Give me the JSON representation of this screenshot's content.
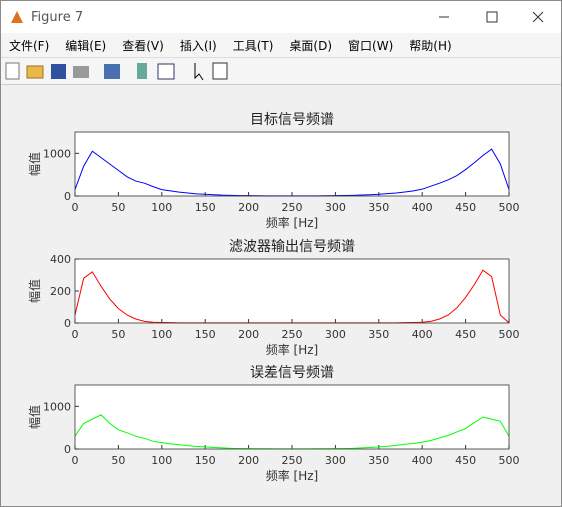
{
  "window": {
    "title": "Figure 7",
    "menu": [
      "文件(F)",
      "编辑(E)",
      "查看(V)",
      "插入(I)",
      "工具(T)",
      "桌面(D)",
      "窗口(W)",
      "帮助(H)"
    ]
  },
  "chart_data": [
    {
      "type": "line",
      "title": "目标信号频谱",
      "xlabel": "频率 [Hz]",
      "ylabel": "幅值",
      "x": [
        0,
        10,
        20,
        30,
        40,
        50,
        60,
        70,
        80,
        90,
        100,
        110,
        120,
        130,
        140,
        150,
        160,
        170,
        180,
        190,
        200,
        210,
        220,
        230,
        240,
        250,
        260,
        270,
        280,
        290,
        300,
        310,
        320,
        330,
        340,
        350,
        360,
        370,
        380,
        390,
        400,
        410,
        420,
        430,
        440,
        450,
        460,
        470,
        480,
        490,
        500
      ],
      "series": [
        {
          "color": "#0000ff",
          "values": [
            150,
            700,
            1050,
            900,
            750,
            600,
            450,
            350,
            300,
            220,
            150,
            120,
            90,
            70,
            50,
            40,
            30,
            20,
            15,
            10,
            8,
            5,
            4,
            3,
            2,
            2,
            2,
            3,
            4,
            6,
            8,
            12,
            15,
            22,
            30,
            40,
            55,
            70,
            95,
            120,
            160,
            230,
            300,
            380,
            480,
            620,
            780,
            950,
            1100,
            750,
            150
          ]
        }
      ],
      "xlim": [
        0,
        500
      ],
      "xticks": [
        0,
        50,
        100,
        150,
        200,
        250,
        300,
        350,
        400,
        450,
        500
      ],
      "ylim": [
        0,
        1500
      ],
      "yticks": [
        0,
        1000
      ]
    },
    {
      "type": "line",
      "title": "滤波器输出信号频谱",
      "xlabel": "频率 [Hz]",
      "ylabel": "幅值",
      "x": [
        0,
        10,
        20,
        30,
        40,
        50,
        60,
        70,
        80,
        90,
        100,
        110,
        120,
        130,
        140,
        150,
        160,
        170,
        180,
        190,
        200,
        210,
        220,
        230,
        240,
        250,
        260,
        270,
        280,
        290,
        300,
        310,
        320,
        330,
        340,
        350,
        360,
        370,
        380,
        390,
        400,
        410,
        420,
        430,
        440,
        450,
        460,
        470,
        480,
        490,
        500
      ],
      "series": [
        {
          "color": "#ff0000",
          "values": [
            50,
            280,
            320,
            230,
            150,
            90,
            50,
            25,
            10,
            5,
            3,
            2,
            1,
            1,
            1,
            1,
            1,
            1,
            1,
            1,
            1,
            1,
            1,
            1,
            1,
            1,
            1,
            1,
            1,
            1,
            1,
            1,
            1,
            1,
            1,
            1,
            1,
            1,
            2,
            3,
            5,
            10,
            25,
            50,
            95,
            160,
            240,
            330,
            290,
            50,
            1
          ]
        }
      ],
      "xlim": [
        0,
        500
      ],
      "xticks": [
        0,
        50,
        100,
        150,
        200,
        250,
        300,
        350,
        400,
        450,
        500
      ],
      "ylim": [
        0,
        400
      ],
      "yticks": [
        0,
        200,
        400
      ]
    },
    {
      "type": "line",
      "title": "误差信号频谱",
      "xlabel": "频率 [Hz]",
      "ylabel": "幅值",
      "x": [
        0,
        10,
        20,
        30,
        40,
        50,
        60,
        70,
        80,
        90,
        100,
        110,
        120,
        130,
        140,
        150,
        160,
        170,
        180,
        190,
        200,
        210,
        220,
        230,
        240,
        250,
        260,
        270,
        280,
        290,
        300,
        310,
        320,
        330,
        340,
        350,
        360,
        370,
        380,
        390,
        400,
        410,
        420,
        430,
        440,
        450,
        460,
        470,
        480,
        490,
        500
      ],
      "series": [
        {
          "color": "#00ff00",
          "values": [
            300,
            600,
            700,
            800,
            600,
            450,
            380,
            300,
            250,
            180,
            150,
            120,
            100,
            80,
            60,
            50,
            35,
            25,
            15,
            10,
            8,
            6,
            5,
            4,
            3,
            3,
            3,
            4,
            5,
            6,
            8,
            10,
            15,
            25,
            35,
            50,
            65,
            85,
            110,
            130,
            160,
            200,
            260,
            320,
            400,
            480,
            620,
            750,
            700,
            650,
            300
          ]
        }
      ],
      "xlim": [
        0,
        500
      ],
      "xticks": [
        0,
        50,
        100,
        150,
        200,
        250,
        300,
        350,
        400,
        450,
        500
      ],
      "ylim": [
        0,
        1500
      ],
      "yticks": [
        0,
        1000
      ]
    }
  ]
}
